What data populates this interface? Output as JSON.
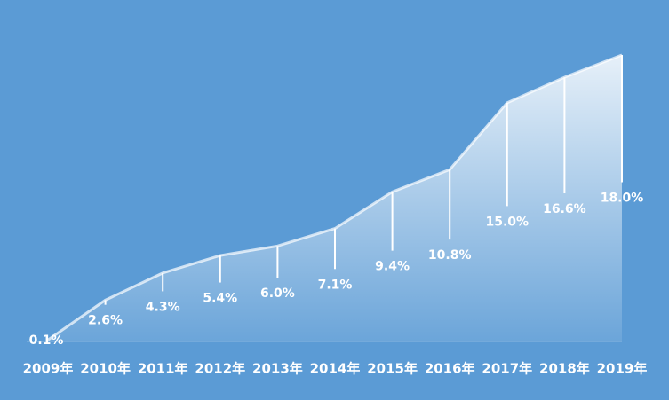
{
  "chart_data": {
    "type": "area",
    "categories": [
      "2009年",
      "2010年",
      "2011年",
      "2012年",
      "2013年",
      "2014年",
      "2015年",
      "2016年",
      "2017年",
      "2018年",
      "2019年"
    ],
    "values": [
      0.1,
      2.6,
      4.3,
      5.4,
      6.0,
      7.1,
      9.4,
      10.8,
      15.0,
      16.6,
      18.0
    ],
    "value_labels": [
      "0.1%",
      "2.6%",
      "4.3%",
      "5.4%",
      "6.0%",
      "7.1%",
      "9.4%",
      "10.8%",
      "15.0%",
      "16.6%",
      "18.0%"
    ],
    "color": "#5b9bd5"
  }
}
